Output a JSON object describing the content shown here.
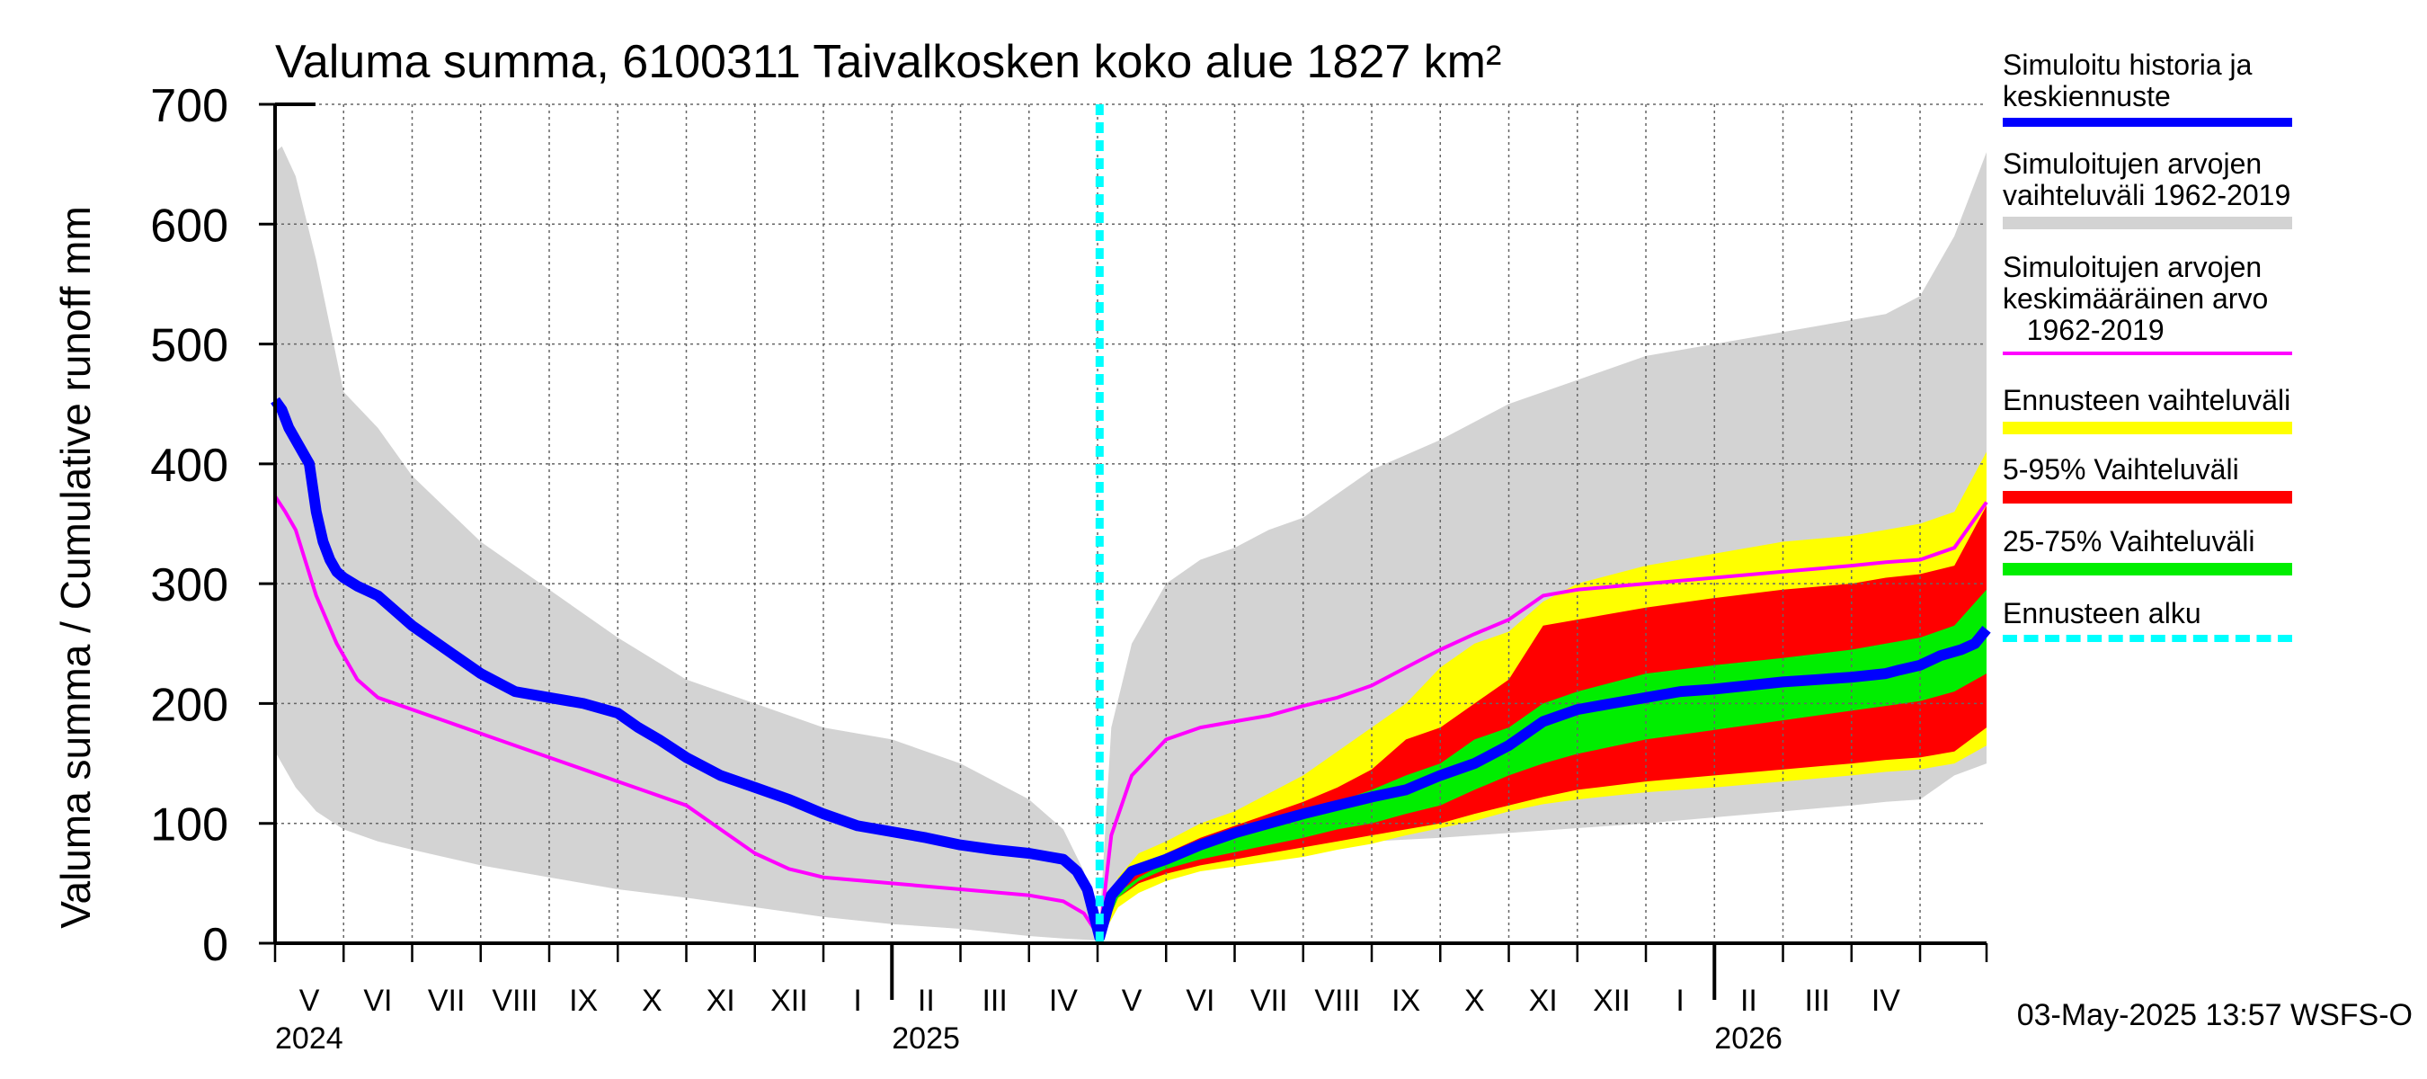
{
  "chart_data": {
    "type": "area",
    "title": "Valuma summa, 6100311 Taivalkosken koko alue 1827 km²",
    "ylabel": "Valuma summa / Cumulative runoff    mm",
    "ylim": [
      0,
      700
    ],
    "yticks": [
      0,
      100,
      200,
      300,
      400,
      500,
      600,
      700
    ],
    "x_unit": "months since 2024-04-01",
    "xlim": [
      0.0,
      24.97
    ],
    "forecast_start_x": 12.03,
    "grid": true,
    "month_labels": [
      "V",
      "VI",
      "VII",
      "VIII",
      "IX",
      "X",
      "XI",
      "XII",
      "I",
      "II",
      "III",
      "IV",
      "V",
      "VI",
      "VII",
      "VIII",
      "IX",
      "X",
      "XI",
      "XII",
      "I",
      "II",
      "III",
      "IV"
    ],
    "year_labels": [
      {
        "label": "2024",
        "x": 0.0
      },
      {
        "label": "2025",
        "x": 9.0
      },
      {
        "label": "2026",
        "x": 21.0
      }
    ],
    "series": [
      {
        "name": "Simuloitujen arvojen vaihteluväli 1962-2019",
        "kind": "band",
        "color": "#d3d3d3",
        "x": [
          0.0,
          0.1,
          0.3,
          0.6,
          1.0,
          1.5,
          2.0,
          3.0,
          4.0,
          5.0,
          6.0,
          7.0,
          8.0,
          9.0,
          10.0,
          11.0,
          11.5,
          11.8,
          12.03,
          12.2,
          12.5,
          13.0,
          13.5,
          14.0,
          14.5,
          15.0,
          16.0,
          17.0,
          18.0,
          19.0,
          20.0,
          21.0,
          22.0,
          23.0,
          23.5,
          24.0,
          24.5,
          24.97
        ],
        "upper": [
          660,
          665,
          640,
          570,
          460,
          430,
          390,
          335,
          295,
          255,
          220,
          200,
          180,
          170,
          150,
          120,
          95,
          60,
          15,
          180,
          250,
          300,
          320,
          330,
          345,
          355,
          395,
          420,
          450,
          470,
          490,
          500,
          510,
          520,
          525,
          540,
          590,
          660
        ],
        "lower": [
          160,
          150,
          130,
          110,
          95,
          85,
          78,
          65,
          55,
          45,
          38,
          30,
          22,
          16,
          12,
          6,
          4,
          3,
          2,
          25,
          45,
          60,
          70,
          75,
          78,
          80,
          85,
          88,
          92,
          96,
          100,
          105,
          110,
          115,
          118,
          120,
          140,
          150
        ]
      },
      {
        "name": "Ennusteen vaihteluväli",
        "kind": "band",
        "color": "#ffff00",
        "x": [
          12.03,
          12.3,
          12.6,
          13.0,
          13.5,
          14.0,
          14.5,
          15.0,
          15.5,
          16.0,
          16.5,
          17.0,
          17.5,
          18.0,
          18.5,
          19.0,
          20.0,
          21.0,
          22.0,
          23.0,
          23.5,
          24.0,
          24.5,
          24.97
        ],
        "upper": [
          2,
          55,
          75,
          85,
          100,
          110,
          125,
          140,
          160,
          180,
          200,
          230,
          250,
          260,
          285,
          300,
          315,
          325,
          335,
          340,
          345,
          350,
          360,
          410
        ],
        "lower": [
          2,
          30,
          42,
          52,
          60,
          64,
          68,
          72,
          78,
          83,
          90,
          96,
          102,
          110,
          116,
          120,
          126,
          130,
          135,
          140,
          143,
          145,
          150,
          165
        ]
      },
      {
        "name": "5-95% Vaihteluväli",
        "kind": "band",
        "color": "#ff0000",
        "x": [
          12.03,
          12.3,
          12.6,
          13.0,
          13.5,
          14.0,
          14.5,
          15.0,
          15.5,
          16.0,
          16.5,
          17.0,
          17.5,
          18.0,
          18.5,
          19.0,
          20.0,
          21.0,
          22.0,
          23.0,
          23.5,
          24.0,
          24.5,
          24.97
        ],
        "upper": [
          2,
          45,
          62,
          75,
          88,
          98,
          108,
          118,
          130,
          145,
          170,
          180,
          200,
          220,
          265,
          270,
          280,
          288,
          295,
          300,
          305,
          308,
          315,
          365
        ],
        "lower": [
          2,
          38,
          50,
          58,
          65,
          70,
          75,
          80,
          85,
          90,
          95,
          100,
          108,
          115,
          122,
          128,
          135,
          140,
          145,
          150,
          153,
          155,
          160,
          180
        ]
      },
      {
        "name": "25-75% Vaihteluväli",
        "kind": "band",
        "color": "#00ee00",
        "x": [
          12.03,
          12.3,
          12.6,
          13.0,
          13.5,
          14.0,
          14.5,
          15.0,
          15.5,
          16.0,
          16.5,
          17.0,
          17.5,
          18.0,
          18.5,
          19.0,
          20.0,
          21.0,
          22.0,
          23.0,
          23.5,
          24.0,
          24.5,
          24.97
        ],
        "upper": [
          2,
          42,
          55,
          67,
          78,
          88,
          98,
          108,
          118,
          128,
          140,
          150,
          170,
          180,
          200,
          210,
          225,
          232,
          238,
          245,
          250,
          255,
          265,
          295
        ],
        "lower": [
          2,
          38,
          52,
          62,
          70,
          76,
          82,
          88,
          95,
          100,
          108,
          115,
          128,
          140,
          150,
          158,
          170,
          178,
          186,
          194,
          198,
          202,
          210,
          225
        ]
      },
      {
        "name": "Simuloitujen arvojen keskimääräinen arvo 1962-2019",
        "kind": "line",
        "color": "#ff00ff",
        "x": [
          0.0,
          0.15,
          0.3,
          0.6,
          0.9,
          1.2,
          1.5,
          2.0,
          2.5,
          3.0,
          3.5,
          4.0,
          4.5,
          5.0,
          5.5,
          6.0,
          6.5,
          7.0,
          7.5,
          8.0,
          9.0,
          10.0,
          11.0,
          11.5,
          11.8,
          12.03,
          12.2,
          12.5,
          13.0,
          13.5,
          14.0,
          14.5,
          15.0,
          15.5,
          16.0,
          16.5,
          17.0,
          17.5,
          18.0,
          18.5,
          19.0,
          20.0,
          21.0,
          22.0,
          23.0,
          23.5,
          24.0,
          24.5,
          24.97
        ],
        "y": [
          373,
          360,
          345,
          290,
          250,
          220,
          205,
          195,
          185,
          175,
          165,
          155,
          145,
          135,
          125,
          115,
          95,
          75,
          62,
          55,
          50,
          45,
          40,
          35,
          25,
          5,
          90,
          140,
          170,
          180,
          185,
          190,
          198,
          205,
          215,
          230,
          245,
          258,
          270,
          290,
          295,
          300,
          305,
          310,
          315,
          318,
          320,
          330,
          368
        ]
      },
      {
        "name": "Simuloitu historia ja keskiennuste",
        "kind": "line",
        "color": "#0000ff",
        "x": [
          0.0,
          0.1,
          0.2,
          0.35,
          0.5,
          0.6,
          0.7,
          0.8,
          0.9,
          1.0,
          1.2,
          1.5,
          1.8,
          2.0,
          2.5,
          3.0,
          3.5,
          4.0,
          4.5,
          5.0,
          5.3,
          5.6,
          6.0,
          6.5,
          7.0,
          7.5,
          8.0,
          8.5,
          9.0,
          9.5,
          10.0,
          10.5,
          11.0,
          11.3,
          11.5,
          11.7,
          11.85,
          12.03,
          12.2,
          12.5,
          13.0,
          13.5,
          14.0,
          14.5,
          15.0,
          15.5,
          16.0,
          16.5,
          17.0,
          17.5,
          18.0,
          18.5,
          19.0,
          19.5,
          20.0,
          20.5,
          21.0,
          21.5,
          22.0,
          22.5,
          23.0,
          23.5,
          23.7,
          24.0,
          24.3,
          24.6,
          24.8,
          24.97
        ],
        "y": [
          453,
          445,
          430,
          415,
          400,
          360,
          335,
          320,
          310,
          305,
          298,
          290,
          275,
          265,
          245,
          225,
          210,
          205,
          200,
          192,
          180,
          170,
          155,
          140,
          130,
          120,
          108,
          98,
          93,
          88,
          82,
          78,
          75,
          72,
          70,
          60,
          45,
          5,
          40,
          60,
          70,
          82,
          92,
          100,
          108,
          115,
          122,
          128,
          140,
          150,
          165,
          185,
          195,
          200,
          205,
          210,
          212,
          215,
          218,
          220,
          222,
          225,
          228,
          232,
          240,
          245,
          250,
          262
        ]
      }
    ],
    "legend": [
      {
        "label": "Simuloitu historia ja\nkeskiennuste",
        "color": "#0000ff",
        "style": "line-thick"
      },
      {
        "label": "Simuloitujen arvojen\nvaihteluväli 1962-2019",
        "color": "#d3d3d3",
        "style": "band"
      },
      {
        "label": "Simuloitujen arvojen\nkeskimääräinen arvo\n   1962-2019",
        "color": "#ff00ff",
        "style": "line-thin"
      },
      {
        "label": "Ennusteen vaihteluväli",
        "color": "#ffff00",
        "style": "band"
      },
      {
        "label": "5-95% Vaihteluväli",
        "color": "#ff0000",
        "style": "band"
      },
      {
        "label": "25-75% Vaihteluväli",
        "color": "#00ee00",
        "style": "band"
      },
      {
        "label": "Ennusteen alku",
        "color": "#00ffff",
        "style": "dashed"
      }
    ]
  },
  "footer": {
    "timestamp": "03-May-2025 13:57 WSFS-O"
  }
}
